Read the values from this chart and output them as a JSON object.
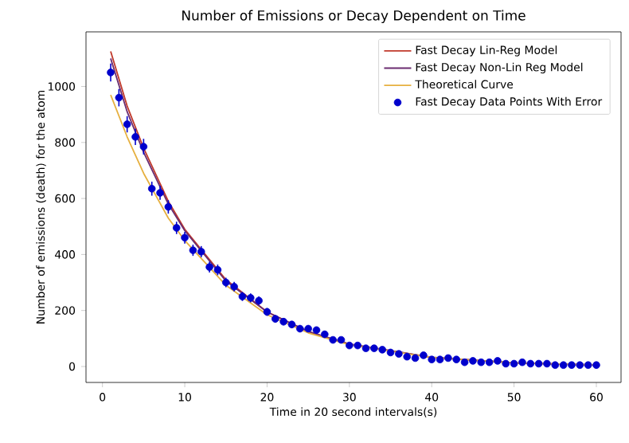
{
  "chart_data": {
    "type": "line",
    "title": "Number of Emissions or Decay Dependent on Time",
    "xlabel": "Time in 20 second intervals(s)",
    "ylabel": "Number of emissions (death) for the atom",
    "xlim": [
      -2,
      63
    ],
    "ylim": [
      -57,
      1195
    ],
    "xticks": [
      0,
      10,
      20,
      30,
      40,
      50,
      60
    ],
    "yticks": [
      0,
      200,
      400,
      600,
      800,
      1000
    ],
    "legend": "top right",
    "series": [
      {
        "name": "Fast Decay Lin-Reg Model",
        "color": "#c0392b",
        "x": [
          1,
          3,
          5,
          8,
          10,
          15,
          20,
          25,
          30,
          40,
          50,
          60
        ],
        "values": [
          1125,
          930,
          780,
          590,
          490,
          310,
          195,
          125,
          80,
          32,
          13,
          5
        ]
      },
      {
        "name": "Fast Decay Non-Lin Reg Model",
        "color": "#6a2c70",
        "x": [
          1,
          3,
          5,
          8,
          10,
          15,
          20,
          25,
          30,
          40,
          50,
          60
        ],
        "values": [
          1100,
          910,
          765,
          580,
          485,
          305,
          195,
          125,
          80,
          33,
          13,
          5
        ]
      },
      {
        "name": "Theoretical Curve",
        "color": "#e6b040",
        "x": [
          1,
          3,
          5,
          8,
          10,
          15,
          20,
          25,
          30,
          40,
          50,
          60
        ],
        "values": [
          970,
          820,
          690,
          530,
          450,
          290,
          185,
          120,
          78,
          32,
          13,
          5
        ]
      },
      {
        "name": "Fast Decay Data Points With Error",
        "type": "scatter",
        "marker": "circle",
        "color": "#0000cc",
        "x": [
          1,
          2,
          3,
          4,
          5,
          6,
          7,
          8,
          9,
          10,
          11,
          12,
          13,
          14,
          15,
          16,
          17,
          18,
          19,
          20,
          21,
          22,
          23,
          24,
          25,
          26,
          27,
          28,
          29,
          30,
          31,
          32,
          33,
          34,
          35,
          36,
          37,
          38,
          39,
          40,
          41,
          42,
          43,
          44,
          45,
          46,
          47,
          48,
          49,
          50,
          51,
          52,
          53,
          54,
          55,
          56,
          57,
          58,
          59,
          60
        ],
        "values": [
          1050,
          960,
          865,
          820,
          785,
          635,
          620,
          570,
          495,
          460,
          415,
          410,
          355,
          345,
          300,
          285,
          250,
          245,
          235,
          195,
          170,
          160,
          150,
          135,
          135,
          130,
          115,
          95,
          95,
          75,
          75,
          65,
          65,
          60,
          50,
          45,
          35,
          30,
          40,
          25,
          25,
          30,
          25,
          15,
          20,
          15,
          15,
          20,
          10,
          10,
          15,
          10,
          10,
          10,
          5,
          5,
          5,
          5,
          5,
          5
        ],
        "errors": [
          32,
          31,
          29,
          29,
          28,
          25,
          25,
          24,
          22,
          21,
          20,
          20,
          19,
          19,
          17,
          17,
          16,
          16,
          15,
          14,
          13,
          13,
          12,
          12,
          12,
          11,
          11,
          10,
          10,
          9,
          9,
          8,
          8,
          8,
          7,
          7,
          6,
          5,
          6,
          5,
          5,
          5,
          5,
          null,
          null,
          null,
          null,
          null,
          null,
          null,
          null,
          null,
          null,
          null,
          null,
          null,
          null,
          null,
          null,
          null
        ]
      }
    ]
  }
}
